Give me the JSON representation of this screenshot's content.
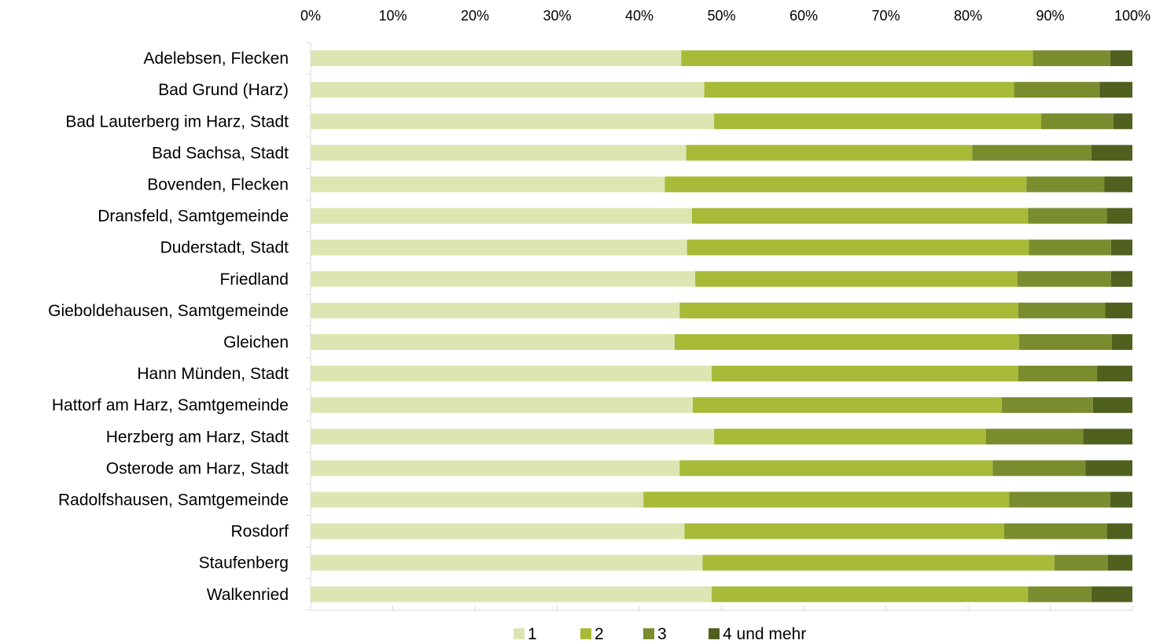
{
  "chart_data": {
    "type": "bar",
    "orientation": "horizontal",
    "stacked": "percent",
    "xlim": [
      0,
      100
    ],
    "x_ticks": [
      "0%",
      "10%",
      "20%",
      "30%",
      "40%",
      "50%",
      "60%",
      "70%",
      "80%",
      "90%",
      "100%"
    ],
    "x_axis_position": "top",
    "legend_position": "bottom",
    "grid": false,
    "categories": [
      "Adelebsen, Flecken",
      "Bad Grund (Harz)",
      "Bad Lauterberg im Harz, Stadt",
      "Bad Sachsa, Stadt",
      "Bovenden, Flecken",
      "Dransfeld, Samtgemeinde",
      "Duderstadt, Stadt",
      "Friedland",
      "Gieboldehausen, Samtgemeinde",
      "Gleichen",
      "Hann Münden, Stadt",
      "Hattorf am Harz, Samtgemeinde",
      "Herzberg am Harz, Stadt",
      "Osterode am Harz, Stadt",
      "Radolfshausen, Samtgemeinde",
      "Rosdorf",
      "Staufenberg",
      "Walkenried"
    ],
    "series": [
      {
        "name": "1",
        "color": "#dde6b3",
        "values": [
          45.1,
          47.9,
          49.1,
          45.7,
          43.1,
          46.4,
          45.8,
          46.8,
          44.9,
          44.3,
          48.8,
          46.5,
          49.1,
          44.9,
          40.5,
          45.5,
          47.7,
          48.8
        ]
      },
      {
        "name": "2",
        "color": "#a8ba38",
        "values": [
          42.8,
          37.7,
          39.8,
          34.8,
          44.0,
          40.9,
          41.6,
          39.2,
          41.2,
          41.9,
          37.3,
          37.6,
          33.1,
          38.1,
          44.5,
          38.9,
          42.8,
          38.5
        ]
      },
      {
        "name": "3",
        "color": "#7a8d2e",
        "values": [
          9.4,
          10.4,
          8.8,
          14.5,
          9.5,
          9.6,
          10.0,
          11.4,
          10.6,
          11.3,
          9.6,
          11.1,
          11.8,
          11.3,
          12.3,
          12.5,
          6.5,
          7.7
        ]
      },
      {
        "name": "4 und mehr",
        "color": "#50601f",
        "values": [
          2.7,
          4.0,
          2.3,
          5.0,
          3.4,
          3.1,
          2.6,
          2.6,
          3.3,
          2.5,
          4.3,
          4.8,
          6.0,
          5.7,
          2.7,
          3.1,
          3.0,
          5.0
        ]
      }
    ]
  }
}
